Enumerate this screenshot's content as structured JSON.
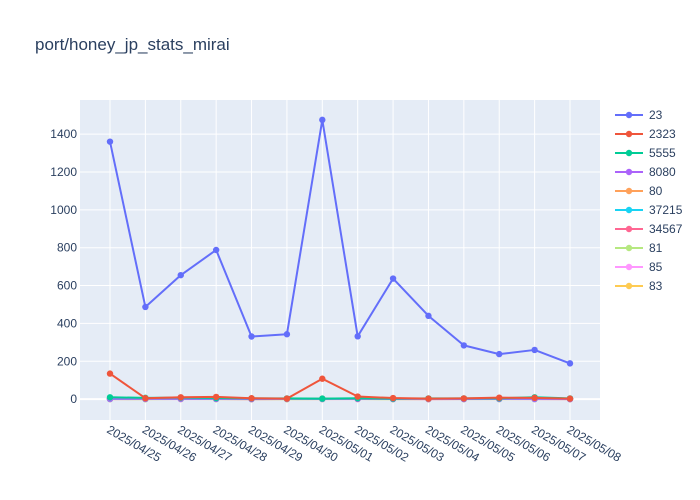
{
  "chart_data": {
    "type": "line",
    "title": "port/honey_jp_stats_mirai",
    "xlabel": "",
    "ylabel": "",
    "categories": [
      "2025/04/25",
      "2025/04/26",
      "2025/04/27",
      "2025/04/28",
      "2025/04/29",
      "2025/04/30",
      "2025/05/01",
      "2025/05/02",
      "2025/05/03",
      "2025/05/04",
      "2025/05/05",
      "2025/05/06",
      "2025/05/07",
      "2025/05/08"
    ],
    "ylim": [
      -110,
      1580
    ],
    "yticks": [
      0,
      200,
      400,
      600,
      800,
      1000,
      1200,
      1400
    ],
    "grid": true,
    "legend_position": "right",
    "series": [
      {
        "name": "23",
        "color": "#636efa",
        "values": [
          1360,
          487,
          655,
          788,
          331,
          343,
          1475,
          332,
          637,
          440,
          284,
          238,
          260,
          189
        ]
      },
      {
        "name": "2323",
        "color": "#EF553B",
        "values": [
          135,
          5,
          10,
          12,
          5,
          3,
          108,
          14,
          6,
          3,
          4,
          8,
          7,
          3
        ]
      },
      {
        "name": "5555",
        "color": "#00cc96",
        "values": [
          10,
          7,
          8,
          6,
          4,
          4,
          3,
          5,
          3,
          4,
          4,
          5,
          10,
          4
        ]
      },
      {
        "name": "8080",
        "color": "#ab63fa",
        "values": [
          2,
          2,
          3,
          2,
          1,
          2,
          2,
          2,
          1,
          2,
          1,
          2,
          2,
          1
        ]
      },
      {
        "name": "80",
        "color": "#FFA15A",
        "values": [
          3,
          2,
          4,
          3,
          2,
          2,
          3,
          3,
          2,
          2,
          2,
          3,
          3,
          2
        ]
      },
      {
        "name": "37215",
        "color": "#19d3f3",
        "values": [
          1,
          1,
          2,
          1,
          1,
          1,
          1,
          2,
          1,
          1,
          1,
          1,
          1,
          1
        ]
      },
      {
        "name": "34567",
        "color": "#FF6692",
        "values": [
          1,
          1,
          1,
          1,
          0,
          1,
          1,
          1,
          1,
          0,
          1,
          1,
          1,
          0
        ]
      },
      {
        "name": "81",
        "color": "#B6E880",
        "values": [
          1,
          0,
          1,
          1,
          0,
          0,
          1,
          1,
          0,
          1,
          0,
          1,
          1,
          0
        ]
      },
      {
        "name": "85",
        "color": "#FF97FF",
        "values": [
          0,
          1,
          0,
          1,
          0,
          1,
          0,
          0,
          1,
          0,
          0,
          1,
          0,
          0
        ]
      },
      {
        "name": "83",
        "color": "#FECB52",
        "values": [
          0,
          0,
          1,
          0,
          0,
          0,
          0,
          1,
          0,
          0,
          1,
          0,
          0,
          1
        ]
      }
    ]
  }
}
